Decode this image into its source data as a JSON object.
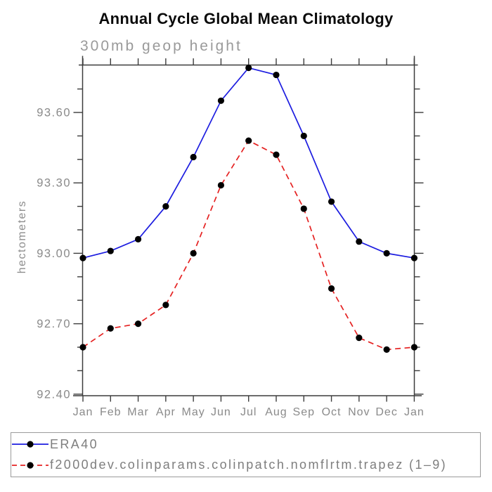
{
  "chart": {
    "title": "Annual Cycle Global Mean Climatology",
    "subtitle": "300mb geop height",
    "ylabel": "hectometers"
  },
  "legend": {
    "position": "bottom",
    "items": [
      {
        "label": "ERA40",
        "color": "#1d1de0",
        "style": "solid"
      },
      {
        "label": "f2000dev.colinparams.colinpatch.nomflrtm.trapez (1–9)",
        "color": "#e52222",
        "style": "dashed"
      }
    ]
  },
  "chart_data": {
    "type": "line",
    "title": "Annual Cycle Global Mean Climatology",
    "subtitle": "300mb geop height",
    "xlabel": "",
    "ylabel": "hectometers",
    "categories": [
      "Jan",
      "Feb",
      "Mar",
      "Apr",
      "May",
      "Jun",
      "Jul",
      "Aug",
      "Sep",
      "Oct",
      "Nov",
      "Dec",
      "Jan"
    ],
    "series": [
      {
        "name": "ERA40",
        "color": "#1d1de0",
        "style": "solid",
        "marker": "filled-circle",
        "marker_color": "#000000",
        "values": [
          92.98,
          93.01,
          93.06,
          93.2,
          93.41,
          93.65,
          93.79,
          93.76,
          93.5,
          93.22,
          93.05,
          93.0,
          92.98
        ]
      },
      {
        "name": "f2000dev.colinparams.colinpatch.nomflrtm.trapez (1–9)",
        "color": "#e52222",
        "style": "dashed",
        "marker": "filled-circle",
        "marker_color": "#000000",
        "values": [
          92.6,
          92.68,
          92.7,
          92.78,
          93.0,
          93.29,
          93.48,
          93.42,
          93.19,
          92.85,
          92.64,
          92.59,
          92.6
        ]
      }
    ],
    "ylim": [
      92.4,
      93.81
    ],
    "yticks_major": [
      92.4,
      92.7,
      93.0,
      93.3,
      93.6
    ],
    "ytick_labels": [
      "92.40",
      "92.70",
      "93.00",
      "93.30",
      "93.60"
    ],
    "ytick_minor_step": 0.1,
    "grid": false,
    "legend_position": "bottom"
  },
  "colors": {
    "axis": "#3c3c3c",
    "tick_label": "#8a8a8a",
    "marker": "#000000",
    "background": "#ffffff"
  }
}
